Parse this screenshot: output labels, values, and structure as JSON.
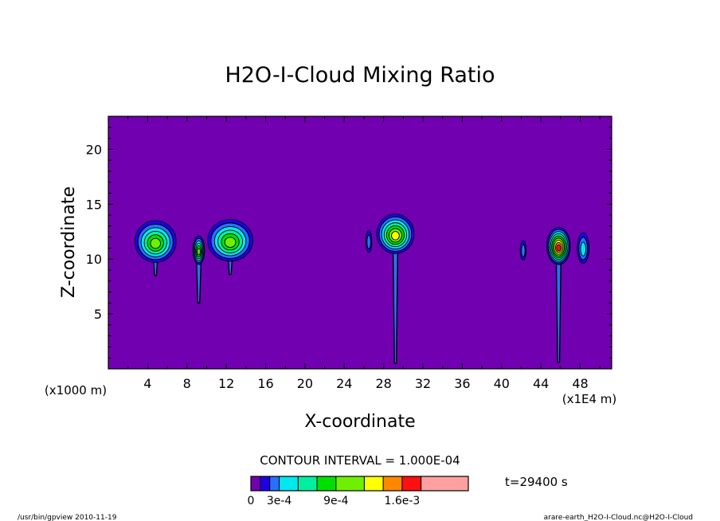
{
  "chart_data": {
    "type": "contour",
    "title": "H2O-I-Cloud Mixing Ratio",
    "xlabel": "X-coordinate",
    "ylabel": "Z-coordinate",
    "x_unit_left": "(x1000 m)",
    "x_unit_right": "(x1E4 m)",
    "x_ticks": [
      "4",
      "8",
      "12",
      "16",
      "20",
      "24",
      "28",
      "32",
      "36",
      "40",
      "44",
      "48"
    ],
    "y_ticks": [
      "5",
      "10",
      "15",
      "20"
    ],
    "xlim": [
      0,
      51.2
    ],
    "ylim": [
      0,
      23
    ],
    "contour_interval_text": "CONTOUR INTERVAL = 1.000E-04",
    "time_text": "t=29400 s",
    "colorbar": {
      "colors": [
        "#7000b0",
        "#1c00e8",
        "#2a70ff",
        "#00e8f0",
        "#00f0a0",
        "#00e000",
        "#70f000",
        "#ffff00",
        "#ff8800",
        "#ff1010",
        "#ffa0a0"
      ],
      "widths": [
        1,
        1,
        1,
        2,
        2,
        2,
        3,
        2,
        2,
        2,
        5
      ],
      "labels": [
        "0",
        "3e-4",
        "9e-4",
        "1.6e-3"
      ]
    },
    "background_color": "#7000b0",
    "clouds": [
      {
        "x": 4.8,
        "z": 11.6,
        "w": 2.1,
        "h": 1.9,
        "max": 6,
        "stem_bottom": 8.5
      },
      {
        "x": 9.2,
        "z": 10.8,
        "w": 0.6,
        "h": 1.3,
        "max": 6,
        "stem_bottom": 6.0
      },
      {
        "x": 12.4,
        "z": 11.7,
        "w": 2.3,
        "h": 1.9,
        "max": 6,
        "stem_bottom": 8.6
      },
      {
        "x": 26.5,
        "z": 11.6,
        "w": 0.3,
        "h": 1.0,
        "max": 2,
        "stem_bottom": null
      },
      {
        "x": 29.2,
        "z": 12.3,
        "w": 1.9,
        "h": 1.8,
        "max": 7,
        "stem_bottom": 0.5
      },
      {
        "x": 42.2,
        "z": 10.8,
        "w": 0.3,
        "h": 0.9,
        "max": 2,
        "stem_bottom": null
      },
      {
        "x": 45.8,
        "z": 11.2,
        "w": 1.2,
        "h": 1.7,
        "max": 9,
        "stem_bottom": 0.6
      },
      {
        "x": 48.3,
        "z": 11.0,
        "w": 0.6,
        "h": 1.4,
        "max": 3,
        "stem_bottom": null
      }
    ]
  },
  "footer": {
    "left": "/usr/bin/gpview 2010-11-19",
    "right": "arare-earth_H2O-I-Cloud.nc@H2O-I-Cloud"
  }
}
